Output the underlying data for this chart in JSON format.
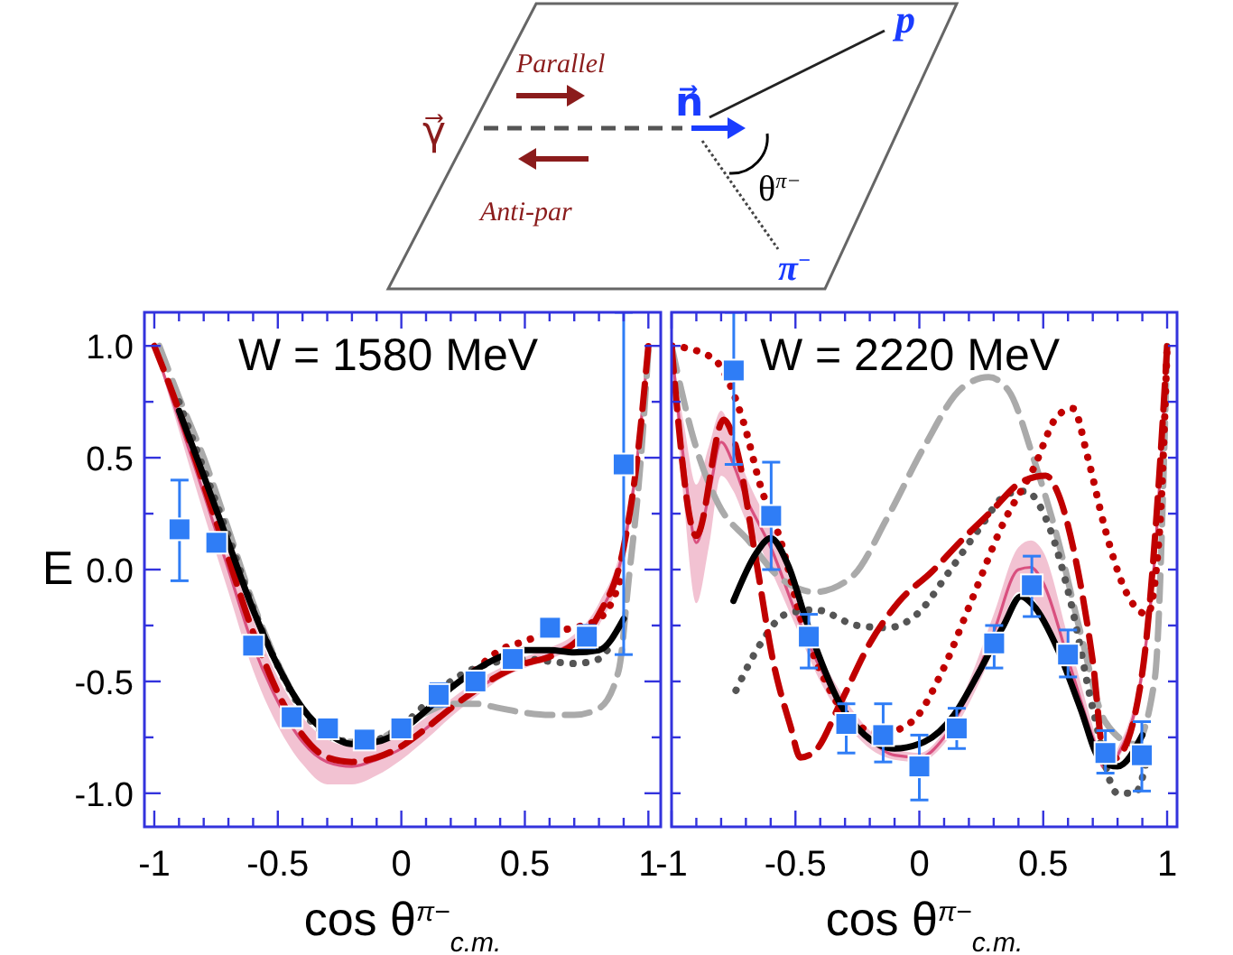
{
  "chart_data": [
    {
      "type": "other",
      "annotations": [
        "γ⃗",
        "Parallel",
        "Anti-par",
        "n⃗",
        "p",
        "θ$^{π−}$",
        "π$^{−}$"
      ]
    },
    {
      "type": "line",
      "title": "W = 1580 MeV",
      "xlabel": "cos θ$^{π−}$$_{c.m.}$",
      "ylabel": "E",
      "xlim": [
        -1.04,
        1.05
      ],
      "ylim": [
        -1.15,
        1.15
      ],
      "xticks": [
        -1,
        {
          "value": -0.9,
          "label": null
        },
        {
          "value": -0.8,
          "label": null
        },
        {
          "value": -0.7,
          "label": null
        },
        {
          "value": -0.6,
          "label": null
        },
        -0.5,
        {
          "value": -0.4,
          "label": null
        },
        {
          "value": -0.3,
          "label": null
        },
        {
          "value": -0.2,
          "label": null
        },
        {
          "value": -0.1,
          "label": null
        },
        0,
        {
          "value": 0.1,
          "label": null
        },
        {
          "value": 0.2,
          "label": null
        },
        {
          "value": 0.3,
          "label": null
        },
        {
          "value": 0.4,
          "label": null
        },
        0.5,
        {
          "value": 0.6,
          "label": null
        },
        {
          "value": 0.7,
          "label": null
        },
        {
          "value": 0.8,
          "label": null
        },
        {
          "value": 0.9,
          "label": null
        },
        1
      ],
      "yticks": [
        {
          "value": -1,
          "label": "-1.0"
        },
        {
          "value": -0.75,
          "label": null
        },
        -0.5,
        {
          "value": -0.25,
          "label": null
        },
        {
          "value": 0,
          "label": "0.0"
        },
        {
          "value": 0.25,
          "label": null
        },
        0.5,
        {
          "value": 0.75,
          "label": null
        },
        {
          "value": 1,
          "label": "1.0"
        }
      ],
      "series": [
        {
          "type": "line",
          "line_style": "solid",
          "color": "#d9507f",
          "x": [
            -1,
            -0.9,
            -0.8,
            -0.7,
            -0.6,
            -0.5,
            -0.4,
            -0.3,
            -0.2,
            -0.1,
            0,
            0.1,
            0.2,
            0.3,
            0.4,
            0.5,
            0.6,
            0.7,
            0.8,
            0.9,
            0.95,
            1
          ],
          "values": [
            1,
            0.67,
            0.34,
            0,
            -0.34,
            -0.59,
            -0.77,
            -0.86,
            -0.88,
            -0.85,
            -0.8,
            -0.71,
            -0.62,
            -0.54,
            -0.47,
            -0.42,
            -0.38,
            -0.32,
            -0.2,
            0.1,
            0.45,
            1
          ],
          "lower": [
            1,
            0.62,
            0.25,
            -0.1,
            -0.45,
            -0.7,
            -0.87,
            -0.96,
            -0.96,
            -0.92,
            -0.85,
            -0.76,
            -0.66,
            -0.57,
            -0.49,
            -0.44,
            -0.4,
            -0.35,
            -0.25,
            0.05,
            0.4,
            1
          ],
          "upper": [
            1,
            0.71,
            0.42,
            0.1,
            -0.22,
            -0.48,
            -0.66,
            -0.76,
            -0.79,
            -0.78,
            -0.74,
            -0.66,
            -0.58,
            -0.5,
            -0.44,
            -0.39,
            -0.35,
            -0.29,
            -0.15,
            0.15,
            0.5,
            1
          ]
        },
        {
          "type": "line",
          "color": "#aaaaaa",
          "line_style": "dashed",
          "x": [
            -0.98,
            -0.9,
            -0.8,
            -0.7,
            -0.6,
            -0.5,
            -0.4,
            -0.3,
            -0.2,
            -0.1,
            0,
            0.1,
            0.2,
            0.3,
            0.4,
            0.5,
            0.6,
            0.7,
            0.8,
            0.88,
            0.92,
            0.97,
            1
          ],
          "values": [
            1,
            0.77,
            0.5,
            0.18,
            -0.15,
            -0.42,
            -0.62,
            -0.73,
            -0.77,
            -0.76,
            -0.7,
            -0.64,
            -0.6,
            -0.6,
            -0.62,
            -0.64,
            -0.65,
            -0.65,
            -0.62,
            -0.45,
            -0.05,
            0.5,
            0.98
          ]
        },
        {
          "type": "line",
          "color": "#555555",
          "line_style": "dotted",
          "x": [
            -0.9,
            -0.8,
            -0.7,
            -0.6,
            -0.5,
            -0.4,
            -0.3,
            -0.2,
            -0.1,
            0,
            0.1,
            0.2,
            0.3,
            0.4,
            0.5,
            0.6,
            0.7,
            0.8,
            0.85
          ],
          "values": [
            0.75,
            0.45,
            0.15,
            -0.17,
            -0.43,
            -0.63,
            -0.74,
            -0.77,
            -0.76,
            -0.7,
            -0.6,
            -0.5,
            -0.44,
            -0.41,
            -0.4,
            -0.41,
            -0.42,
            -0.4,
            -0.33
          ]
        },
        {
          "type": "line",
          "color": "#c00000",
          "line_style": "dotted",
          "x": [
            0.3,
            0.4,
            0.5,
            0.6,
            0.7,
            0.8,
            0.85,
            0.9
          ],
          "values": [
            -0.45,
            -0.36,
            -0.32,
            -0.28,
            -0.26,
            -0.22,
            -0.15,
            0
          ]
        },
        {
          "type": "line",
          "color": "#c00000",
          "line_style": "dashed",
          "x": [
            -1,
            -0.9,
            -0.8,
            -0.7,
            -0.6,
            -0.5,
            -0.4,
            -0.3,
            -0.2,
            -0.1,
            0,
            0.1,
            0.2,
            0.3,
            0.4,
            0.5,
            0.6,
            0.7,
            0.8,
            0.9,
            0.95,
            1
          ],
          "values": [
            1,
            0.71,
            0.38,
            0.05,
            -0.28,
            -0.55,
            -0.74,
            -0.84,
            -0.86,
            -0.84,
            -0.79,
            -0.71,
            -0.62,
            -0.54,
            -0.47,
            -0.42,
            -0.39,
            -0.33,
            -0.2,
            0.1,
            0.45,
            1
          ]
        },
        {
          "type": "line",
          "color": "#000000",
          "line_style": "solid",
          "x": [
            -0.9,
            -0.8,
            -0.7,
            -0.6,
            -0.5,
            -0.4,
            -0.3,
            -0.2,
            -0.1,
            0,
            0.1,
            0.2,
            0.3,
            0.4,
            0.5,
            0.6,
            0.7,
            0.8,
            0.9
          ],
          "values": [
            0.71,
            0.42,
            0.12,
            -0.18,
            -0.43,
            -0.62,
            -0.73,
            -0.78,
            -0.77,
            -0.72,
            -0.63,
            -0.53,
            -0.45,
            -0.39,
            -0.36,
            -0.36,
            -0.37,
            -0.36,
            -0.22
          ]
        },
        {
          "type": "scatter",
          "color": "#2f7df6",
          "marker": "square",
          "x": [
            -0.898,
            -0.749,
            -0.6,
            -0.444,
            -0.297,
            -0.149,
            0,
            0.151,
            0.3,
            0.451,
            0.602,
            0.751,
            0.9
          ],
          "values": [
            0.18,
            0.12,
            -0.34,
            -0.66,
            -0.71,
            -0.76,
            -0.71,
            -0.56,
            -0.5,
            -0.4,
            -0.26,
            -0.3,
            0.47
          ],
          "errors": [
            [
              -0.05,
              0.4
            ],
            0.03,
            0.03,
            0.04,
            0.04,
            0.03,
            0.04,
            0.05,
            0.02,
            0.04,
            0.03,
            0.05,
            [
              -0.38,
              1.15
            ]
          ]
        }
      ]
    },
    {
      "type": "line",
      "title": "W = 2220 MeV",
      "xlabel": "cos θ$^{π−}$$_{c.m.}$",
      "xlim": [
        -1.0,
        1.04
      ],
      "ylim": [
        -1.15,
        1.15
      ],
      "tick_labels": "x",
      "xticks": [
        -1,
        {
          "value": -0.9,
          "label": null
        },
        {
          "value": -0.8,
          "label": null
        },
        {
          "value": -0.7,
          "label": null
        },
        {
          "value": -0.6,
          "label": null
        },
        -0.5,
        {
          "value": -0.4,
          "label": null
        },
        {
          "value": -0.3,
          "label": null
        },
        {
          "value": -0.2,
          "label": null
        },
        {
          "value": -0.1,
          "label": null
        },
        0,
        {
          "value": 0.1,
          "label": null
        },
        {
          "value": 0.2,
          "label": null
        },
        {
          "value": 0.3,
          "label": null
        },
        {
          "value": 0.4,
          "label": null
        },
        0.5,
        {
          "value": 0.6,
          "label": null
        },
        {
          "value": 0.7,
          "label": null
        },
        {
          "value": 0.8,
          "label": null
        },
        {
          "value": 0.9,
          "label": null
        },
        1
      ],
      "yticks": [
        {
          "value": -1,
          "label": null
        },
        {
          "value": -0.75,
          "label": null
        },
        {
          "value": -0.5,
          "label": null
        },
        {
          "value": -0.25,
          "label": null
        },
        {
          "value": 0,
          "label": null
        },
        {
          "value": 0.25,
          "label": null
        },
        {
          "value": 0.5,
          "label": null
        },
        {
          "value": 0.75,
          "label": null
        },
        {
          "value": 1,
          "label": null
        }
      ],
      "series": [
        {
          "type": "line",
          "line_style": "solid",
          "color": "#d9507f",
          "x": [
            -1,
            -0.95,
            -0.9,
            -0.85,
            -0.8,
            -0.75,
            -0.7,
            -0.65,
            -0.6,
            -0.5,
            -0.4,
            -0.3,
            -0.2,
            -0.1,
            0,
            0.1,
            0.2,
            0.3,
            0.4,
            0.45,
            0.5,
            0.6,
            0.7,
            0.75,
            0.8,
            0.9,
            0.95,
            1
          ],
          "values": [
            1,
            0.48,
            0.12,
            0.33,
            0.57,
            0.47,
            0.32,
            0.21,
            0.1,
            -0.19,
            -0.44,
            -0.63,
            -0.76,
            -0.83,
            -0.84,
            -0.75,
            -0.55,
            -0.28,
            0,
            0.01,
            -0.06,
            -0.4,
            -0.75,
            -0.89,
            -0.83,
            -0.45,
            0.05,
            1
          ],
          "lower": [
            1,
            0.3,
            -0.15,
            0.1,
            0.42,
            0.35,
            0.22,
            0.12,
            0,
            -0.25,
            -0.5,
            -0.68,
            -0.8,
            -0.85,
            -0.86,
            -0.78,
            -0.6,
            -0.36,
            -0.1,
            -0.12,
            -0.2,
            -0.5,
            -0.8,
            -0.9,
            -0.85,
            -0.5,
            0,
            1
          ],
          "upper": [
            1,
            0.65,
            0.38,
            0.55,
            0.71,
            0.58,
            0.42,
            0.3,
            0.2,
            -0.12,
            -0.38,
            -0.58,
            -0.72,
            -0.8,
            -0.82,
            -0.72,
            -0.5,
            -0.2,
            0.1,
            0.13,
            0.08,
            -0.3,
            -0.7,
            -0.88,
            -0.8,
            -0.4,
            0.1,
            1
          ]
        },
        {
          "type": "line",
          "color": "#aaaaaa",
          "line_style": "dashed",
          "x": [
            -1,
            -0.91,
            -0.81,
            -0.69,
            -0.57,
            -0.42,
            -0.27,
            -0.13,
            0.02,
            0.17,
            0.28,
            0.36,
            0.46,
            0.56,
            0.65,
            0.75,
            0.87,
            0.95,
            1
          ],
          "values": [
            1,
            0.58,
            0.29,
            0.13,
            -0.03,
            -0.1,
            -0.03,
            0.23,
            0.55,
            0.81,
            0.86,
            0.8,
            0.5,
            0.13,
            -0.28,
            -0.68,
            -0.78,
            -0.49,
            1
          ]
        },
        {
          "type": "line",
          "color": "#555555",
          "line_style": "dotted",
          "x": [
            -0.74,
            -0.64,
            -0.54,
            -0.42,
            -0.25,
            -0.13,
            -0.01,
            0.12,
            0.24,
            0.36,
            0.43,
            0.51,
            0.61,
            0.7,
            0.8,
            0.87,
            0.92
          ],
          "values": [
            -0.54,
            -0.33,
            -0.2,
            -0.18,
            -0.25,
            -0.26,
            -0.2,
            -0.01,
            0.18,
            0.34,
            0.35,
            0.23,
            -0.14,
            -0.62,
            -1,
            -1,
            -0.84
          ]
        },
        {
          "type": "line",
          "color": "#c00000",
          "line_style": "dotted",
          "x": [
            -1,
            -0.88,
            -0.81,
            -0.71,
            -0.64,
            -0.56,
            -0.47,
            -0.37,
            -0.27,
            -0.15,
            -0.03,
            0.09,
            0.21,
            0.34,
            0.46,
            0.56,
            0.62,
            0.68,
            0.75,
            0.83,
            0.92,
            0.97,
            1
          ],
          "values": [
            1,
            0.97,
            0.92,
            0.66,
            0.37,
            0.13,
            -0.25,
            -0.52,
            -0.68,
            -0.73,
            -0.68,
            -0.46,
            -0.14,
            0.21,
            0.45,
            0.69,
            0.72,
            0.5,
            0.18,
            -0.09,
            -0.2,
            0.18,
            1
          ]
        },
        {
          "type": "line",
          "color": "#c00000",
          "line_style": "dashed",
          "x": [
            -1,
            -0.9,
            -0.79,
            -0.74,
            -0.66,
            -0.59,
            -0.52,
            -0.48,
            -0.42,
            -0.32,
            -0.2,
            -0.08,
            0.05,
            0.17,
            0.29,
            0.41,
            0.51,
            0.56,
            0.63,
            0.7,
            0.75,
            0.8,
            0.9,
            0.97,
            1
          ],
          "values": [
            1,
            0.15,
            0.67,
            0.55,
            0.05,
            -0.41,
            -0.7,
            -0.84,
            -0.81,
            -0.6,
            -0.33,
            -0.14,
            -0.01,
            0.13,
            0.26,
            0.39,
            0.42,
            0.34,
            0.05,
            -0.41,
            -0.86,
            -0.84,
            -0.46,
            0.45,
            1
          ]
        },
        {
          "type": "line",
          "color": "#000000",
          "line_style": "solid",
          "x": [
            -0.75,
            -0.66,
            -0.6,
            -0.53,
            -0.45,
            -0.32,
            -0.22,
            -0.1,
            0.02,
            0.14,
            0.24,
            0.34,
            0.41,
            0.46,
            0.56,
            0.65,
            0.73,
            0.8,
            0.9
          ],
          "values": [
            -0.14,
            0.07,
            0.14,
            0.02,
            -0.25,
            -0.6,
            -0.74,
            -0.8,
            -0.77,
            -0.65,
            -0.46,
            -0.25,
            -0.12,
            -0.16,
            -0.36,
            -0.62,
            -0.85,
            -0.88,
            -0.74
          ]
        },
        {
          "type": "scatter",
          "color": "#2f7df6",
          "marker": "square",
          "x": [
            -0.749,
            -0.598,
            -0.446,
            -0.295,
            -0.146,
            0,
            0.151,
            0.302,
            0.454,
            0.6,
            0.751,
            0.898
          ],
          "values": [
            0.89,
            0.24,
            -0.3,
            -0.69,
            -0.74,
            -0.88,
            -0.71,
            -0.33,
            -0.07,
            -0.38,
            -0.82,
            -0.83
          ],
          "errors": [
            [
              0.47,
              1.15
            ],
            [
              0,
              0.48
            ],
            [
              -0.44,
              -0.2
            ],
            [
              -0.82,
              -0.6
            ],
            [
              -0.86,
              -0.6
            ],
            [
              -1.03,
              -0.74
            ],
            [
              -0.8,
              -0.62
            ],
            [
              -0.44,
              -0.25
            ],
            [
              -0.21,
              0.06
            ],
            [
              -0.48,
              -0.27
            ],
            [
              -0.91,
              -0.72
            ],
            [
              -0.99,
              -0.68
            ]
          ]
        }
      ]
    }
  ]
}
